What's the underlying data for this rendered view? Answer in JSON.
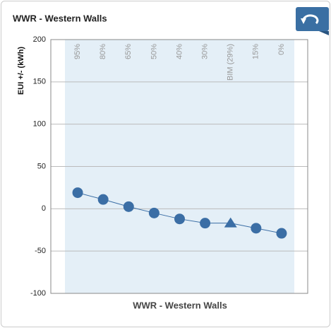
{
  "chart_data": {
    "type": "line",
    "title": "WWR - Western Walls",
    "x_label": "WWR - Western Walls",
    "y_label": "EUI +/- (kWh)",
    "categories": [
      "95%",
      "80%",
      "65%",
      "50%",
      "40%",
      "30%",
      "BIM (29%)",
      "15%",
      "0%"
    ],
    "values": [
      19,
      11,
      2.5,
      -5,
      -12,
      -17,
      -17,
      -23,
      -29
    ],
    "markers": [
      "circle",
      "circle",
      "circle",
      "circle",
      "circle",
      "circle",
      "triangle",
      "circle",
      "circle"
    ],
    "color": "#3b6ea5",
    "ylim": [
      -100,
      200
    ],
    "yticks": [
      -100,
      -50,
      0,
      50,
      100,
      150,
      200
    ],
    "grid": true
  }
}
